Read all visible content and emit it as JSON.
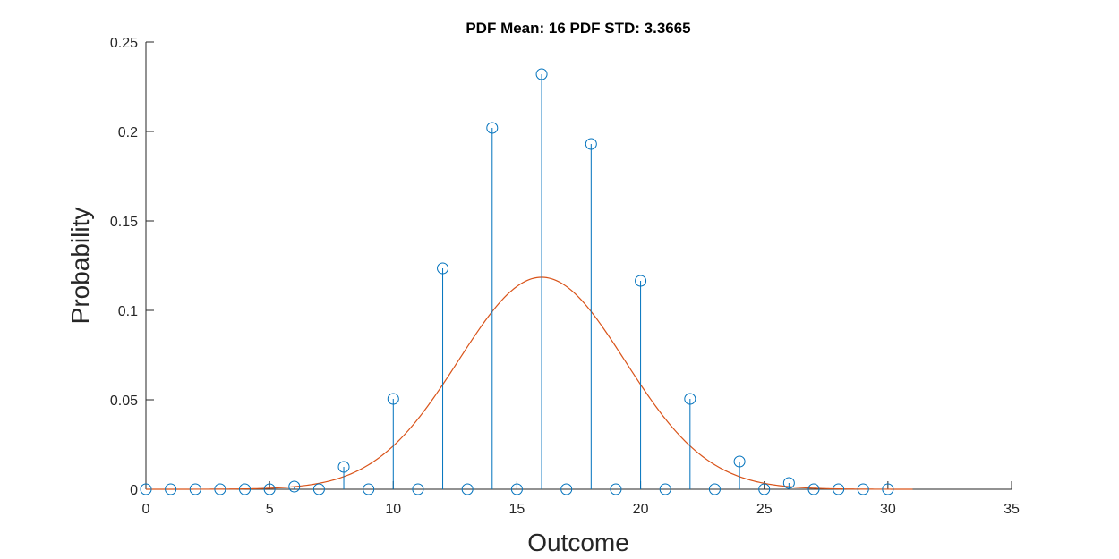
{
  "chart_data": {
    "type": "stem",
    "title": "PDF Mean: 16  PDF STD: 3.3665",
    "xlabel": "Outcome",
    "ylabel": "Probability",
    "xlim": [
      0,
      35
    ],
    "ylim": [
      0,
      0.25
    ],
    "xticks": [
      0,
      5,
      10,
      15,
      20,
      25,
      30,
      35
    ],
    "xtick_labels": [
      "0",
      "5",
      "10",
      "15",
      "20",
      "25",
      "30",
      "35"
    ],
    "yticks": [
      0,
      0.05,
      0.1,
      0.15,
      0.2,
      0.25
    ],
    "ytick_labels": [
      "0",
      "0.05",
      "0.1",
      "0.15",
      "0.2",
      "0.25"
    ],
    "grid": false,
    "series": [
      {
        "type": "stem",
        "marker": "circle",
        "color": "#0072bd",
        "x": [
          0,
          1,
          2,
          3,
          4,
          5,
          6,
          7,
          8,
          9,
          10,
          11,
          12,
          13,
          14,
          15,
          16,
          17,
          18,
          19,
          20,
          21,
          22,
          23,
          24,
          25,
          26,
          27,
          28,
          29,
          30
        ],
        "y": [
          0,
          0,
          0,
          0,
          0,
          0,
          0.0015,
          0,
          0.0125,
          0,
          0.0505,
          0,
          0.1235,
          0,
          0.202,
          0,
          0.232,
          0,
          0.193,
          0,
          0.1165,
          0,
          0.0505,
          0,
          0.0155,
          0,
          0.0035,
          0,
          0,
          0,
          0
        ]
      },
      {
        "type": "line",
        "color": "#d95319",
        "distribution": "normal",
        "mean": 16,
        "std": 3.3665,
        "x_range": [
          0,
          31
        ]
      }
    ]
  }
}
